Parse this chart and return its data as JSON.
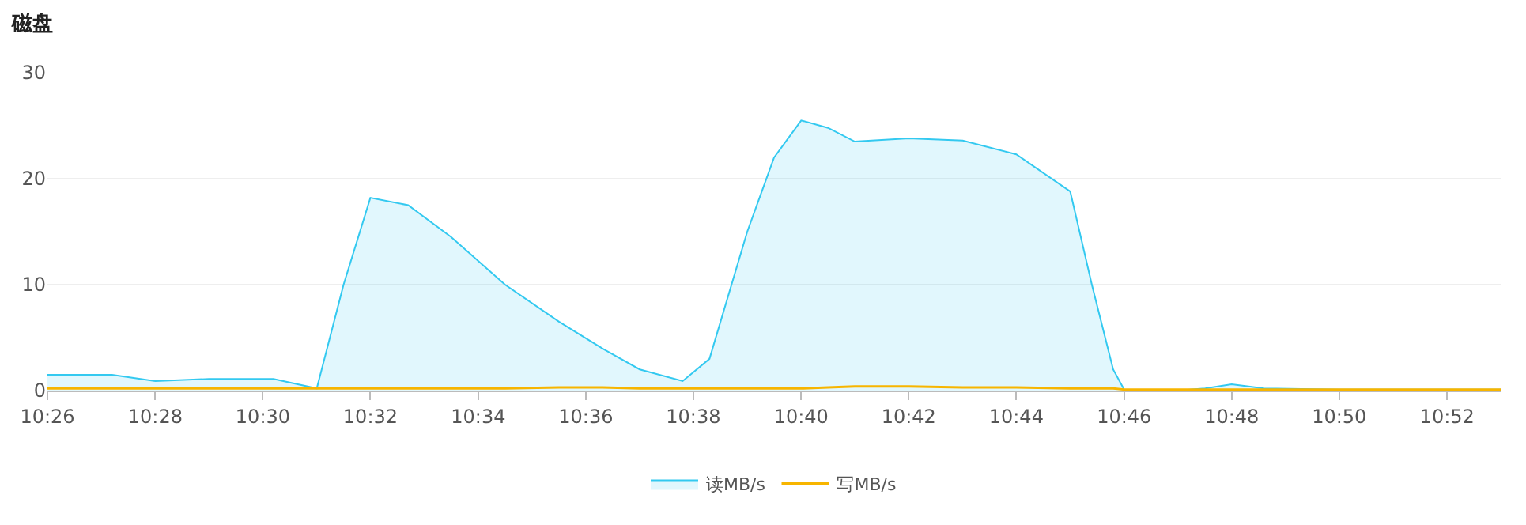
{
  "chart_data": {
    "type": "area",
    "title": "磁盘",
    "x": [
      10.4333,
      10.4533,
      10.4667,
      10.4833,
      10.5033,
      10.5167,
      10.525,
      10.5333,
      10.545,
      10.5583,
      10.575,
      10.5917,
      10.605,
      10.6167,
      10.63,
      10.6383,
      10.65,
      10.6583,
      10.6667,
      10.675,
      10.6833,
      10.7,
      10.7167,
      10.7333,
      10.75,
      10.7567,
      10.7633,
      10.7667,
      10.7833,
      10.7917,
      10.8,
      10.81,
      10.8333,
      10.8833
    ],
    "series": [
      {
        "name": "读MB/s",
        "color": "#33c9f0",
        "values": [
          1.5,
          1.5,
          0.9,
          1.1,
          1.1,
          0.2,
          10,
          18.2,
          17.5,
          14.5,
          10,
          6.5,
          4,
          2,
          0.9,
          3,
          15,
          22,
          25.5,
          24.8,
          23.5,
          23.8,
          23.6,
          22.3,
          18.8,
          10,
          2,
          0.1,
          0,
          0.2,
          0.6,
          0.2,
          0.1,
          0.1
        ]
      },
      {
        "name": "写MB/s",
        "type": "line",
        "color": "#f7b500",
        "values": [
          0.2,
          0.2,
          0.2,
          0.2,
          0.2,
          0.2,
          0.2,
          0.2,
          0.2,
          0.2,
          0.2,
          0.3,
          0.3,
          0.2,
          0.2,
          0.2,
          0.2,
          0.2,
          0.2,
          0.3,
          0.4,
          0.4,
          0.3,
          0.3,
          0.2,
          0.2,
          0.2,
          0.1,
          0.1,
          0.1,
          0.1,
          0.1,
          0.1,
          0.1
        ]
      }
    ],
    "xlim": [
      10.4333,
      10.8833
    ],
    "xticks": [
      {
        "value": 10.4333,
        "label": "10:26"
      },
      {
        "value": 10.4667,
        "label": "10:28"
      },
      {
        "value": 10.5,
        "label": "10:30"
      },
      {
        "value": 10.5333,
        "label": "10:32"
      },
      {
        "value": 10.5667,
        "label": "10:34"
      },
      {
        "value": 10.6,
        "label": "10:36"
      },
      {
        "value": 10.6333,
        "label": "10:38"
      },
      {
        "value": 10.6667,
        "label": "10:40"
      },
      {
        "value": 10.7,
        "label": "10:42"
      },
      {
        "value": 10.7333,
        "label": "10:44"
      },
      {
        "value": 10.7667,
        "label": "10:46"
      },
      {
        "value": 10.8,
        "label": "10:48"
      },
      {
        "value": 10.8333,
        "label": "10:50"
      },
      {
        "value": 10.8667,
        "label": "10:52"
      }
    ],
    "ylim": [
      0,
      30
    ],
    "yticks": [
      0,
      10,
      20,
      30
    ],
    "grid": "y",
    "legend": "bottom"
  }
}
